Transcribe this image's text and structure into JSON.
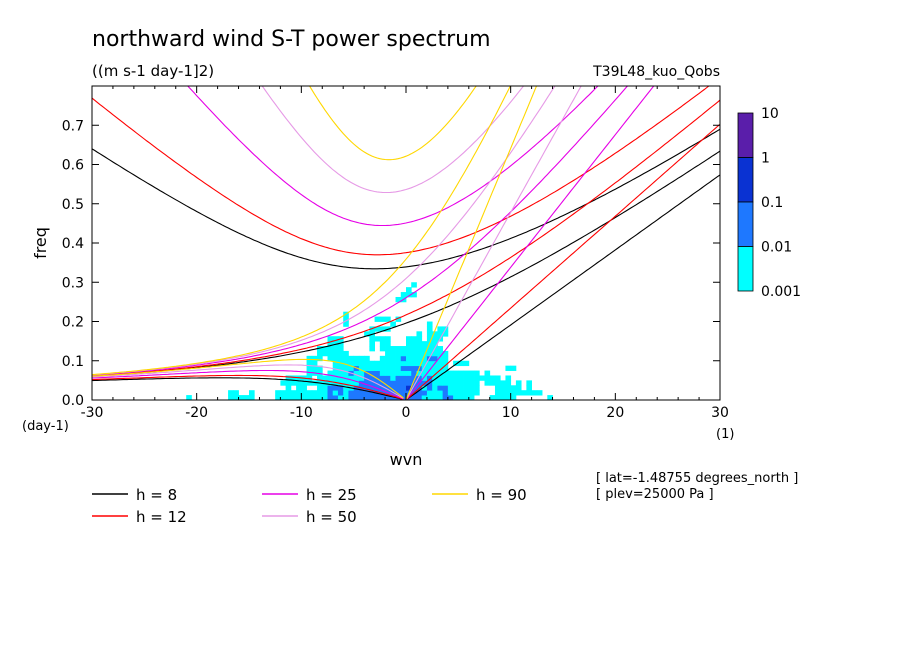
{
  "chart_data": {
    "type": "heatmap",
    "title": "northward wind S-T power spectrum",
    "subtitle": "((m s-1 day-1]2)",
    "run_label": "T39L48_kuo_Qobs",
    "xlabel": "wvn",
    "ylabel": "freq",
    "x_unit": "(1)",
    "y_unit": "(day-1)",
    "xlim": [
      -30,
      30
    ],
    "ylim": [
      0,
      0.8
    ],
    "x_ticks": [
      -30,
      -20,
      -10,
      0,
      10,
      20,
      30
    ],
    "y_ticks": [
      0.0,
      0.1,
      0.2,
      0.3,
      0.4,
      0.5,
      0.6,
      0.7
    ],
    "x_tick_labels": [
      "-30",
      "-20",
      "-10",
      "0",
      "10",
      "20",
      "30"
    ],
    "y_tick_labels": [
      "0.0",
      "0.1",
      "0.2",
      "0.3",
      "0.4",
      "0.5",
      "0.6",
      "0.7"
    ],
    "colorbar": {
      "levels": [
        0.001,
        0.01,
        0.1,
        1,
        10
      ],
      "labels": [
        "0.001",
        "0.01",
        "0.1",
        "1",
        "10"
      ],
      "colors": [
        "#00ffff",
        "#1e78ff",
        "#0a32d2",
        "#0000aa",
        "#5a1eaa"
      ]
    },
    "dispersion_curves": [
      {
        "label": "h =  8",
        "h": 8,
        "color": "#000000"
      },
      {
        "label": "h = 12",
        "h": 12,
        "color": "#ff0000"
      },
      {
        "label": "h = 25",
        "h": 25,
        "color": "#e600e6"
      },
      {
        "label": "h = 50",
        "h": 50,
        "color": "#e69ae6"
      },
      {
        "label": "h = 90",
        "h": 90,
        "color": "#ffd700"
      }
    ],
    "annotations": [
      "[ lat=-1.48755 degrees_north ]",
      "[ plev=25000 Pa ]"
    ]
  }
}
